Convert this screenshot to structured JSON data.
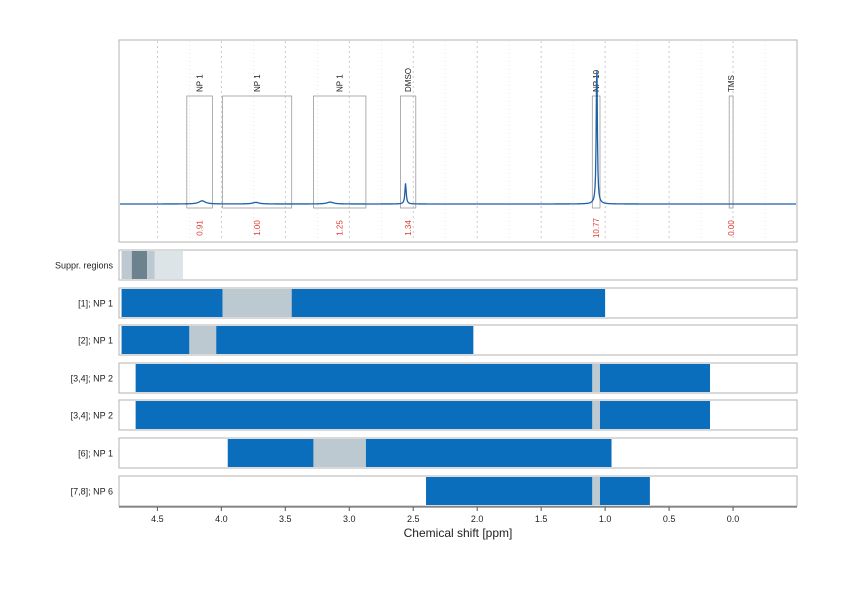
{
  "chart_data": {
    "type": "line",
    "xlabel": "Chemical shift [ppm]",
    "xlim": [
      4.8,
      -0.5
    ],
    "reversed_x": true,
    "x_ticks": [
      "4.5",
      "4.0",
      "3.5",
      "3.0",
      "2.5",
      "2.0",
      "1.5",
      "1.0",
      "0.5",
      "0.0"
    ],
    "x_tick_values": [
      4.5,
      4.0,
      3.5,
      3.0,
      2.5,
      2.0,
      1.5,
      1.0,
      0.5,
      0.0
    ],
    "grid": "vertical dotted",
    "spectrum": {
      "peaks": [
        {
          "ppm": 4.15,
          "height": 0.02,
          "width": 0.03
        },
        {
          "ppm": 3.73,
          "height": 0.01,
          "width": 0.03
        },
        {
          "ppm": 3.15,
          "height": 0.012,
          "width": 0.03
        },
        {
          "ppm": 2.56,
          "height": 0.13,
          "width": 0.006
        },
        {
          "ppm": 1.065,
          "height": 0.92,
          "width": 0.005
        }
      ],
      "color": "#1f5fa5"
    },
    "annotations": [
      {
        "label": "NP 1",
        "from": 4.27,
        "to": 4.07,
        "value": "0.91",
        "box_height": 0.6
      },
      {
        "label": "NP 1",
        "from": 3.99,
        "to": 3.45,
        "value": "1.00",
        "box_height": 0.6
      },
      {
        "label": "NP 1",
        "from": 3.28,
        "to": 2.87,
        "value": "1.25",
        "box_height": 0.6
      },
      {
        "label": "DMSO",
        "from": 2.6,
        "to": 2.48,
        "value": "1.34",
        "box_height": 0.6
      },
      {
        "label": "NP 10",
        "from": 1.1,
        "to": 1.04,
        "value": "10.77",
        "box_height": 0.6
      },
      {
        "label": "TMS",
        "from": 0.03,
        "to": 0.0,
        "value": "0.00",
        "box_height": 0.6
      }
    ],
    "annotation_value_color": "#e03c31",
    "rows": [
      {
        "label": "Suppr. regions",
        "segments": [
          {
            "from": 4.78,
            "to": 4.7,
            "color": "#bcc9d0"
          },
          {
            "from": 4.7,
            "to": 4.58,
            "color": "#6d828f"
          },
          {
            "from": 4.58,
            "to": 4.52,
            "color": "#bcc9d0"
          },
          {
            "from": 4.52,
            "to": 4.3,
            "color": "#dde4e8"
          }
        ]
      },
      {
        "label": "[1]; NP 1",
        "segments": [
          {
            "from": 4.78,
            "to": 3.99,
            "color": "#0a6ebd"
          },
          {
            "from": 3.99,
            "to": 3.45,
            "color": "#bcc9d0"
          },
          {
            "from": 3.45,
            "to": 1.0,
            "color": "#0a6ebd"
          }
        ]
      },
      {
        "label": "[2]; NP 1",
        "segments": [
          {
            "from": 4.78,
            "to": 4.25,
            "color": "#0a6ebd"
          },
          {
            "from": 4.25,
            "to": 4.04,
            "color": "#bcc9d0"
          },
          {
            "from": 4.04,
            "to": 2.03,
            "color": "#0a6ebd"
          }
        ]
      },
      {
        "label": "[3,4]; NP 2",
        "segments": [
          {
            "from": 4.67,
            "to": 1.1,
            "color": "#0a6ebd"
          },
          {
            "from": 1.1,
            "to": 1.04,
            "color": "#bcc9d0"
          },
          {
            "from": 1.04,
            "to": 0.18,
            "color": "#0a6ebd"
          }
        ]
      },
      {
        "label": "[3,4]; NP 2",
        "segments": [
          {
            "from": 4.67,
            "to": 1.1,
            "color": "#0a6ebd"
          },
          {
            "from": 1.1,
            "to": 1.04,
            "color": "#bcc9d0"
          },
          {
            "from": 1.04,
            "to": 0.18,
            "color": "#0a6ebd"
          }
        ]
      },
      {
        "label": "[6]; NP 1",
        "segments": [
          {
            "from": 3.95,
            "to": 3.28,
            "color": "#0a6ebd"
          },
          {
            "from": 3.28,
            "to": 2.87,
            "color": "#bcc9d0"
          },
          {
            "from": 2.87,
            "to": 0.95,
            "color": "#0a6ebd"
          }
        ]
      },
      {
        "label": "[7,8]; NP 6",
        "segments": [
          {
            "from": 2.4,
            "to": 1.1,
            "color": "#0a6ebd"
          },
          {
            "from": 1.1,
            "to": 1.04,
            "color": "#bcc9d0"
          },
          {
            "from": 1.04,
            "to": 0.65,
            "color": "#0a6ebd"
          }
        ]
      }
    ]
  }
}
